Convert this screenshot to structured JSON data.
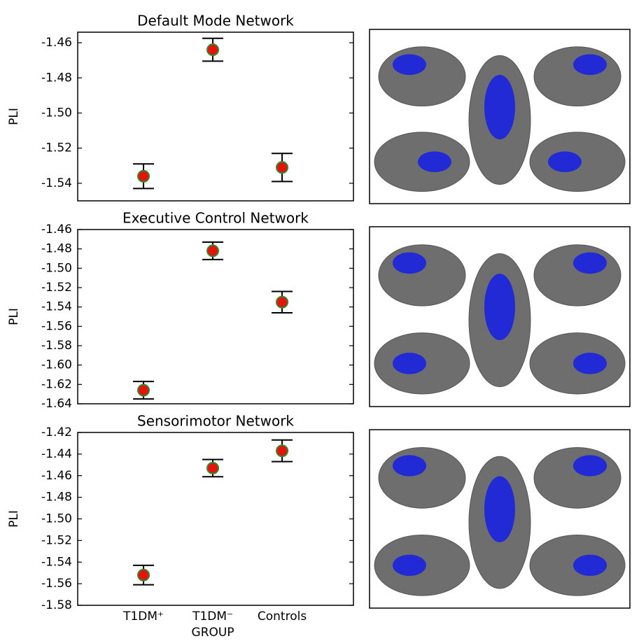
{
  "chart_data": [
    {
      "type": "errorbar",
      "title": "Default Mode Network",
      "ylabel": "PLI",
      "categories": [
        null,
        null,
        null
      ],
      "values": [
        -1.536,
        -1.464,
        -1.531
      ],
      "errors": [
        0.007,
        0.0065,
        0.008
      ],
      "color": "#e8120c",
      "edge_color": "#2e8b2e",
      "ylim": [
        -1.55,
        -1.454
      ],
      "yticks": [
        -1.46,
        -1.48,
        {
          "value": -1.5,
          "label": "-1.50"
        },
        -1.52,
        -1.54
      ]
    },
    {
      "type": "errorbar",
      "title": "Executive Control Network",
      "ylabel": "PLI",
      "categories": [
        null,
        null,
        null
      ],
      "values": [
        -1.626,
        -1.482,
        -1.535
      ],
      "errors": [
        0.009,
        0.009,
        0.011
      ],
      "color": "#e8120c",
      "edge_color": "#2e8b2e",
      "ylim": [
        -1.64,
        -1.46
      ],
      "yticks": [
        -1.46,
        -1.48,
        {
          "value": -1.5,
          "label": "-1.50"
        },
        -1.52,
        -1.54,
        -1.56,
        -1.58,
        {
          "value": -1.6,
          "label": "-1.60"
        },
        -1.62,
        -1.64
      ]
    },
    {
      "type": "errorbar",
      "title": "Sensorimotor Network",
      "ylabel": "PLI",
      "xlabel": "GROUP",
      "categories": [
        "T1DM⁺",
        "T1DM⁻",
        "Controls"
      ],
      "values": [
        -1.552,
        -1.453,
        -1.437
      ],
      "errors": [
        0.009,
        0.008,
        0.01
      ],
      "color": "#e8120c",
      "edge_color": "#2e8b2e",
      "ylim": [
        -1.58,
        -1.42
      ],
      "yticks": [
        -1.42,
        -1.44,
        -1.46,
        -1.48,
        {
          "value": -1.5,
          "label": "-1.50"
        },
        -1.52,
        -1.54,
        -1.56,
        -1.58
      ]
    }
  ]
}
